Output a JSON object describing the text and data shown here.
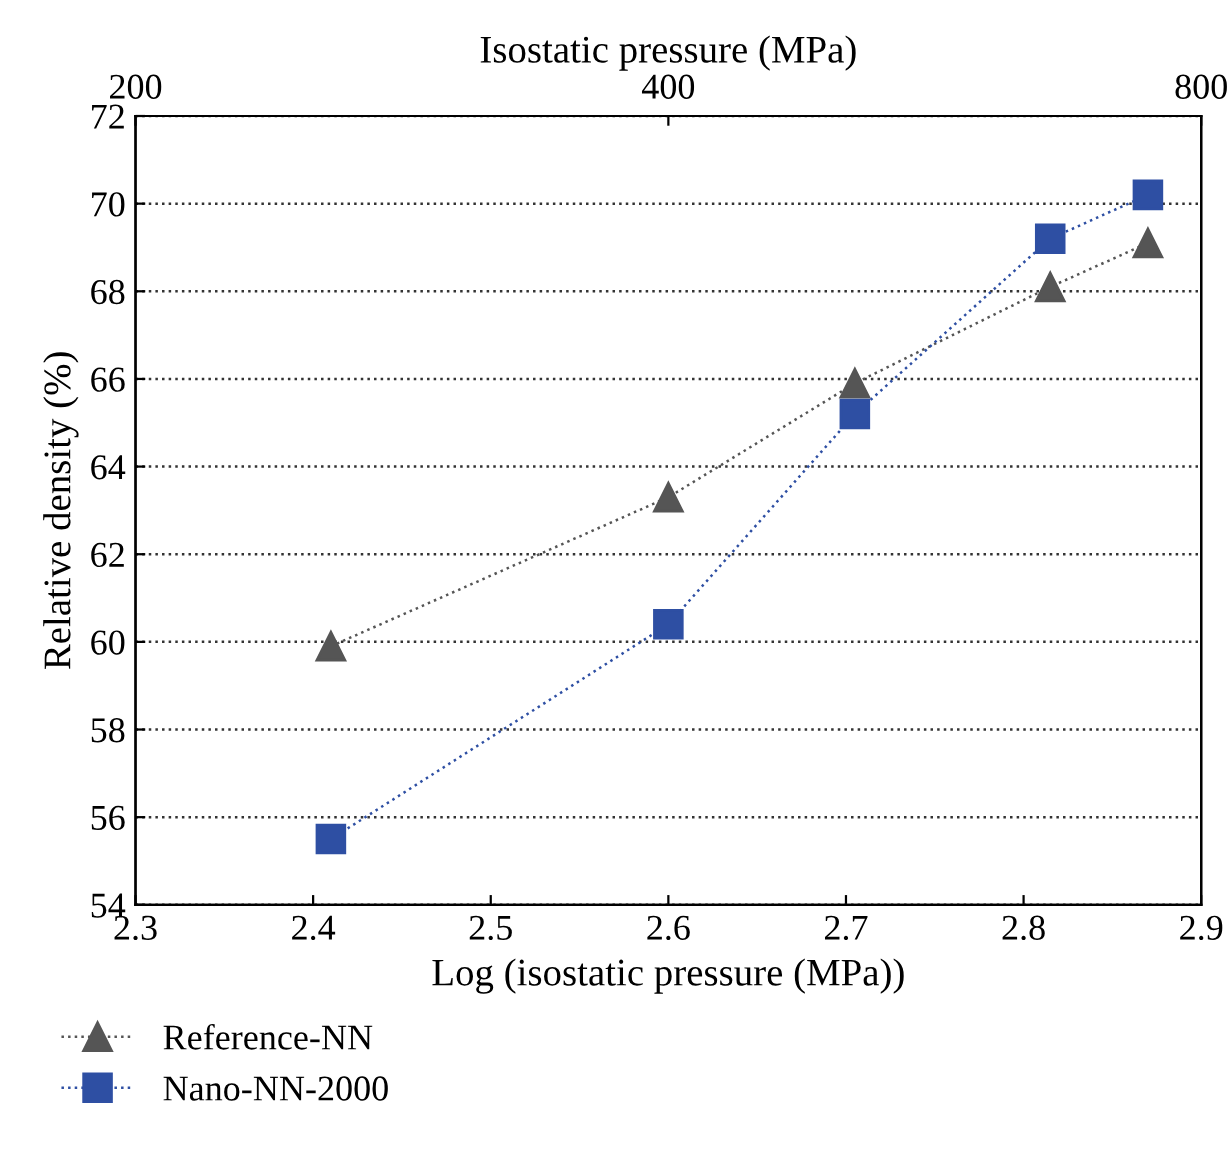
{
  "chart_data": {
    "type": "line",
    "xlabel": "Log (isostatic pressure (MPa))",
    "ylabel": "Relative density (%)",
    "x2label": "Isostatic pressure (MPa)",
    "xlim": [
      2.3,
      2.9
    ],
    "xticks": [
      2.3,
      2.4,
      2.5,
      2.6,
      2.7,
      2.8,
      2.9
    ],
    "ylim": [
      54,
      72
    ],
    "yticks": [
      54,
      56,
      58,
      60,
      62,
      64,
      66,
      68,
      70,
      72
    ],
    "x2lim": [
      200,
      800
    ],
    "x2ticks": [
      200,
      400,
      800
    ],
    "log": "x2",
    "grid": "y",
    "legend": "bottom",
    "line_style": "dotted",
    "series": [
      {
        "name": "Reference-NN",
        "color": "#555555",
        "marker": "triangle",
        "x": [
          2.41,
          2.6,
          2.705,
          2.815,
          2.87
        ],
        "values": [
          59.9,
          63.3,
          65.9,
          68.1,
          69.1
        ]
      },
      {
        "name": "Nano-NN-2000",
        "color": "#2e4fa3",
        "marker": "square",
        "x": [
          2.41,
          2.6,
          2.705,
          2.815,
          2.87
        ],
        "values": [
          55.5,
          60.4,
          65.2,
          69.2,
          70.2
        ]
      }
    ]
  }
}
